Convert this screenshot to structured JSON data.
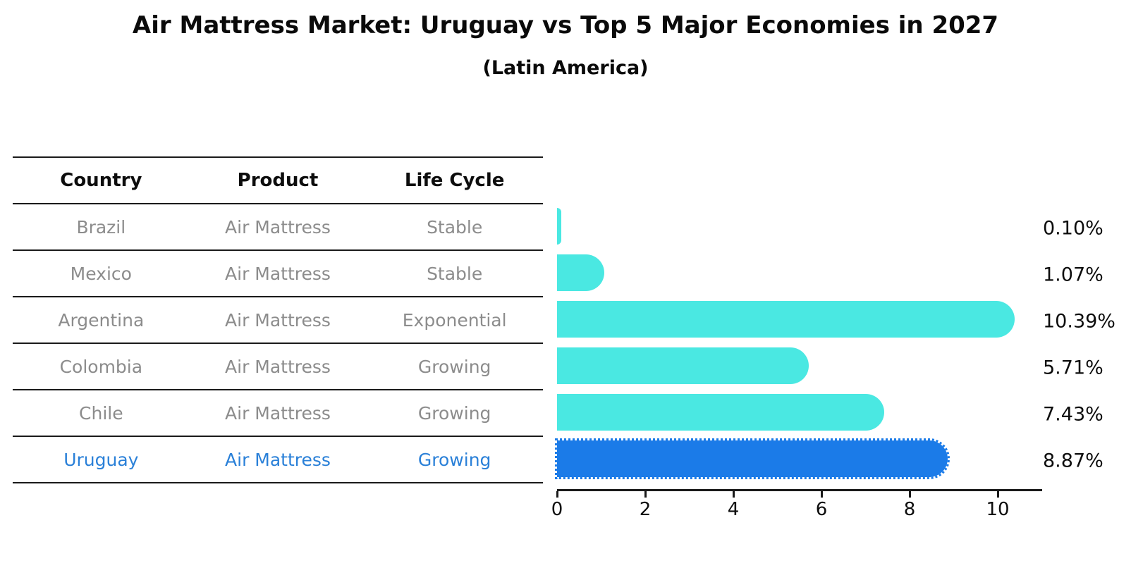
{
  "title": "Air Mattress Market: Uruguay vs Top 5 Major Economies in 2027",
  "subtitle": "(Latin America)",
  "table": {
    "headers": [
      "Country",
      "Product",
      "Life Cycle"
    ],
    "rows": [
      {
        "country": "Brazil",
        "product": "Air Mattress",
        "life_cycle": "Stable",
        "highlight": false
      },
      {
        "country": "Mexico",
        "product": "Air Mattress",
        "life_cycle": "Stable",
        "highlight": false
      },
      {
        "country": "Argentina",
        "product": "Air Mattress",
        "life_cycle": "Exponential",
        "highlight": false
      },
      {
        "country": "Colombia",
        "product": "Air Mattress",
        "life_cycle": "Growing",
        "highlight": false
      },
      {
        "country": "Chile",
        "product": "Air Mattress",
        "life_cycle": "Growing",
        "highlight": false
      },
      {
        "country": "Uruguay",
        "product": "Air Mattress",
        "life_cycle": "Growing",
        "highlight": true
      }
    ]
  },
  "chart_data": {
    "type": "bar",
    "orientation": "horizontal",
    "title": "Air Mattress Market: Uruguay vs Top 5 Major Economies in 2027",
    "subtitle": "(Latin America)",
    "categories": [
      "Brazil",
      "Mexico",
      "Argentina",
      "Colombia",
      "Chile",
      "Uruguay"
    ],
    "values": [
      0.1,
      1.07,
      10.39,
      5.71,
      7.43,
      8.87
    ],
    "value_labels": [
      "0.10%",
      "1.07%",
      "10.39%",
      "5.71%",
      "7.43%",
      "8.87%"
    ],
    "x_ticks": [
      0,
      2,
      4,
      6,
      8,
      10
    ],
    "xlim": [
      0,
      11
    ],
    "grid": false,
    "legend": false,
    "bar_color": "#4ae8e2",
    "highlight": {
      "index": 5,
      "category": "Uruguay",
      "color": "#1b7be8",
      "edge_style": "dotted"
    }
  },
  "colors": {
    "background": "#ffffff",
    "bar": "#4ae8e2",
    "highlight_bar": "#1b7be8",
    "highlight_text": "#2a80d8",
    "muted_text": "#8c8c8c",
    "text": "#0d0d0d",
    "line": "#1a1a1a"
  }
}
